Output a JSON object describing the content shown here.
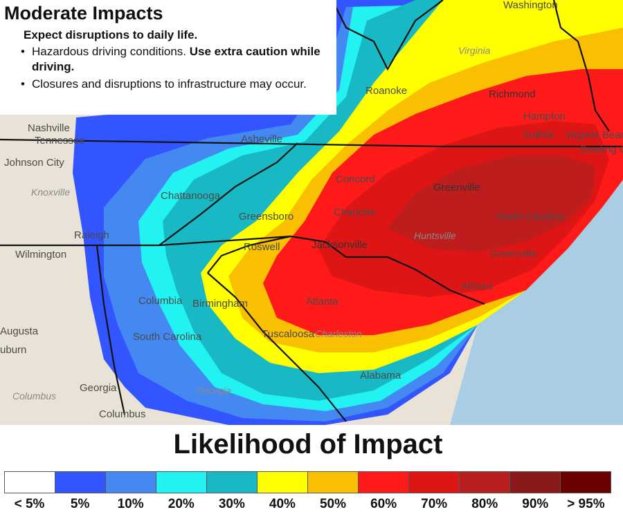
{
  "info_box": {
    "title": "Moderate Impacts",
    "subtitle": "Expect disruptions to daily life.",
    "bullets": [
      {
        "text": "Hazardous driving conditions. ",
        "bold": "Use extra caution while driving."
      },
      {
        "text": "Closures and disruptions to infrastructure may occur.",
        "bold": ""
      }
    ]
  },
  "map": {
    "cities": [
      "Washington",
      "Virginia",
      "Roanoke",
      "Richmond",
      "Hampton",
      "Suffolk",
      "Virginia Beach",
      "Bowling Green",
      "Nashville",
      "Tennessee",
      "Johnson City",
      "Knoxville",
      "Asheville",
      "Chattanooga",
      "Greensboro",
      "Raleigh",
      "Concord",
      "Greenville",
      "Charlotte",
      "North Carolina",
      "Jacksonville",
      "Huntsville",
      "Greenville",
      "Wilmington",
      "Roswell",
      "Athens",
      "Columbia",
      "Birmingham",
      "Atlanta",
      "Augusta",
      "South Carolina",
      "Tuscaloosa",
      "Charleston",
      "Auburn",
      "Alabama",
      "Georgia",
      "Columbus"
    ],
    "colors": {
      "water": "#a9cde4",
      "land": "#e8e3d6"
    }
  },
  "legend": {
    "title": "Likelihood of Impact",
    "items": [
      {
        "label": "< 5%",
        "color": "#ffffff"
      },
      {
        "label": "5%",
        "color": "#3355ff"
      },
      {
        "label": "10%",
        "color": "#4488f2"
      },
      {
        "label": "20%",
        "color": "#22f2f2"
      },
      {
        "label": "30%",
        "color": "#18b8c4"
      },
      {
        "label": "40%",
        "color": "#ffff00"
      },
      {
        "label": "50%",
        "color": "#f8c000"
      },
      {
        "label": "60%",
        "color": "#ff1a1a"
      },
      {
        "label": "70%",
        "color": "#dd1515"
      },
      {
        "label": "80%",
        "color": "#b81f1f"
      },
      {
        "label": "90%",
        "color": "#8a1a1a"
      },
      {
        "label": "> 95%",
        "color": "#6a0000"
      }
    ]
  }
}
